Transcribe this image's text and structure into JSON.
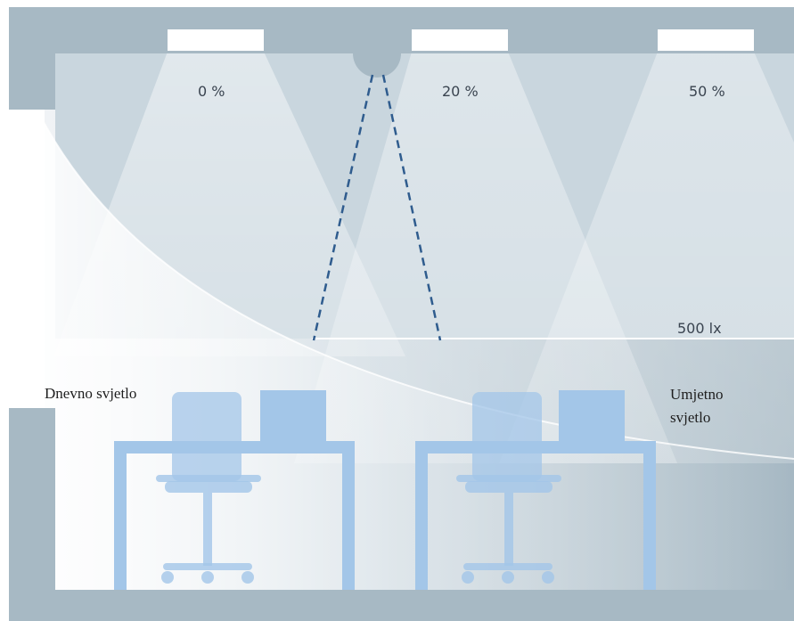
{
  "luminaires": [
    {
      "dimming_label": "0 %"
    },
    {
      "dimming_label": "20 %"
    },
    {
      "dimming_label": "50 %"
    }
  ],
  "illuminance_label": "500 lx",
  "daylight_label": "Dnevno svjetlo",
  "artificial_light_label_line1": "Umjetno",
  "artificial_light_label_line2": "svjetlo",
  "colors": {
    "structure": "#a7b9c4",
    "ceiling_area": "#c9d6de",
    "furniture": "#a3c6e8",
    "sensor_cone": "#2f5c8e",
    "luminaire": "#ffffff",
    "text": "#3a4450"
  }
}
